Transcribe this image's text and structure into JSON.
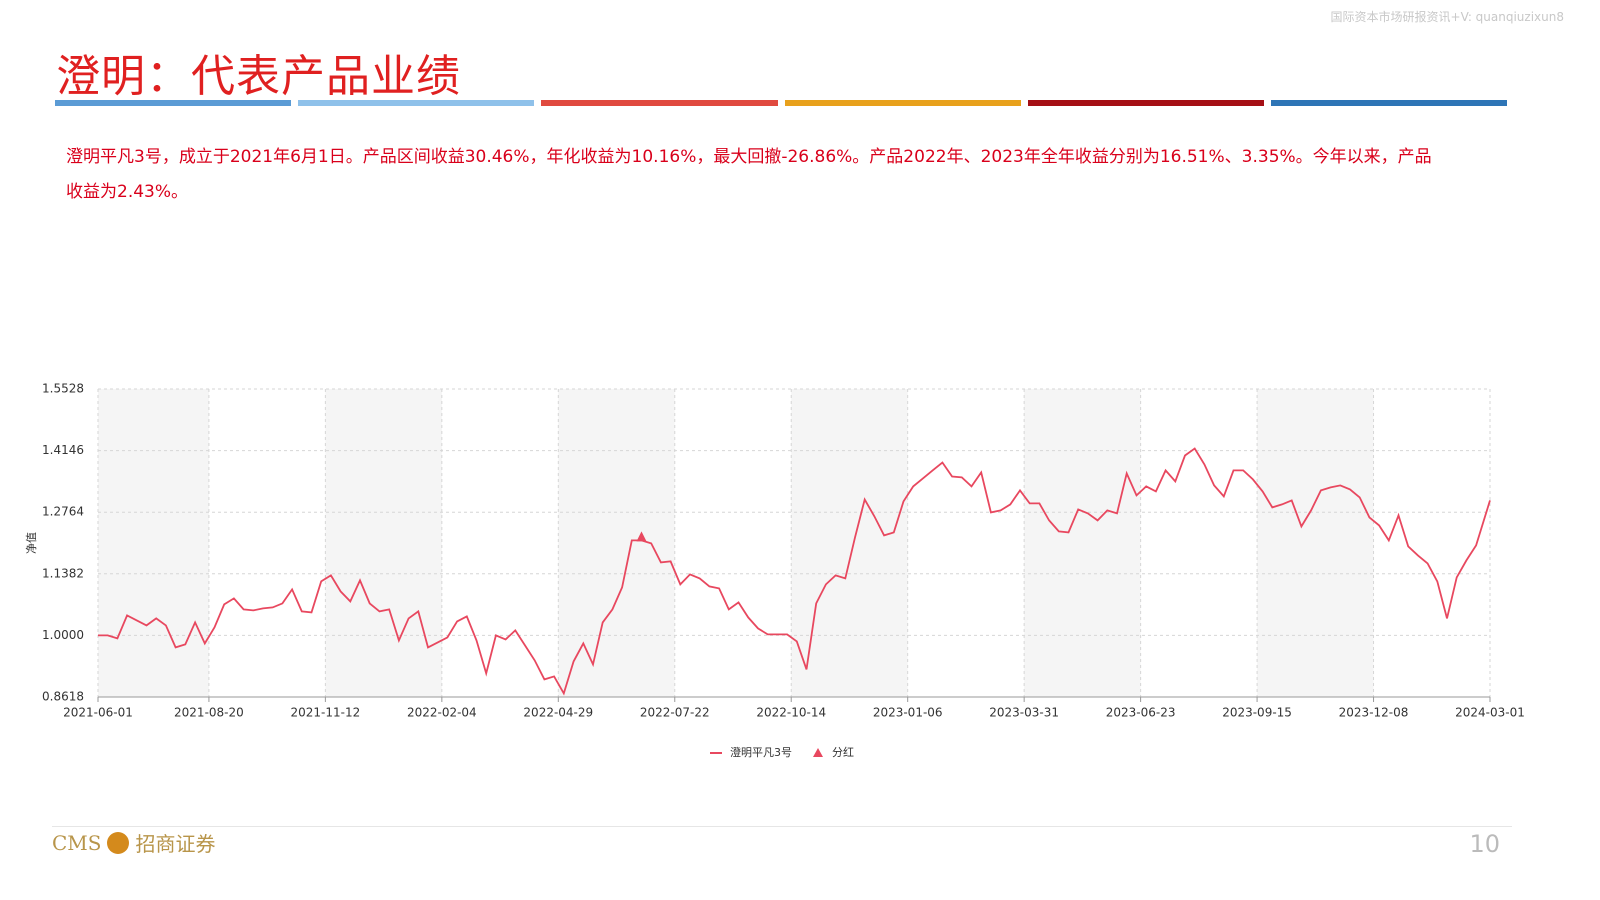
{
  "watermark": "国际资本市场研报资讯+V: quanqiuzixun8",
  "header": {
    "title": "澄明：代表产品业绩"
  },
  "paragraph": "澄明平凡3号，成立于2021年6月1日。产品区间收益30.46%，年化收益为10.16%，最大回撤-26.86%。产品2022年、2023年全年收益分别为16.51%、3.35%。今年以来，产品收益为2.43%。",
  "footer": {
    "logo_en": "CMS",
    "logo_cn": "招商证券",
    "page_number": "10"
  },
  "chart_data": {
    "type": "line",
    "ylabel": "净值",
    "grid": true,
    "xlim": [
      "2021-06-01",
      "2024-03-01"
    ],
    "xticks": [
      "2021-06-01",
      "2021-08-20",
      "2021-11-12",
      "2022-02-04",
      "2022-04-29",
      "2022-07-22",
      "2022-10-14",
      "2023-01-06",
      "2023-03-31",
      "2023-06-23",
      "2023-09-15",
      "2023-12-08",
      "2024-03-01"
    ],
    "ylim": [
      0.8618,
      1.5528
    ],
    "yticks": [
      0.8618,
      {
        "value": 1,
        "label": "1.0000"
      },
      1.1382,
      1.2764,
      1.4146,
      1.5528
    ],
    "series": [
      {
        "name": "澄明平凡3号",
        "color": "#e8485f",
        "x": [
          "2021-06-01",
          "2021-06-08",
          "2021-06-15",
          "2021-06-22",
          "2021-06-29",
          "2021-07-06",
          "2021-07-13",
          "2021-07-20",
          "2021-07-27",
          "2021-08-03",
          "2021-08-10",
          "2021-08-17",
          "2021-08-24",
          "2021-08-31",
          "2021-09-07",
          "2021-09-14",
          "2021-09-21",
          "2021-09-28",
          "2021-10-05",
          "2021-10-12",
          "2021-10-19",
          "2021-10-26",
          "2021-11-02",
          "2021-11-09",
          "2021-11-16",
          "2021-11-23",
          "2021-11-30",
          "2021-12-07",
          "2021-12-14",
          "2021-12-21",
          "2021-12-28",
          "2022-01-04",
          "2022-01-11",
          "2022-01-18",
          "2022-01-25",
          "2022-02-01",
          "2022-02-08",
          "2022-02-15",
          "2022-02-22",
          "2022-03-01",
          "2022-03-08",
          "2022-03-15",
          "2022-03-22",
          "2022-03-29",
          "2022-04-05",
          "2022-04-12",
          "2022-04-19",
          "2022-04-26",
          "2022-05-03",
          "2022-05-10",
          "2022-05-17",
          "2022-05-24",
          "2022-05-31",
          "2022-06-07",
          "2022-06-14",
          "2022-06-21",
          "2022-06-28",
          "2022-07-05",
          "2022-07-12",
          "2022-07-19",
          "2022-07-26",
          "2022-08-02",
          "2022-08-09",
          "2022-08-16",
          "2022-08-23",
          "2022-08-30",
          "2022-09-06",
          "2022-09-13",
          "2022-09-20",
          "2022-09-27",
          "2022-10-04",
          "2022-10-11",
          "2022-10-18",
          "2022-10-25",
          "2022-11-01",
          "2022-11-08",
          "2022-11-15",
          "2022-11-22",
          "2022-11-29",
          "2022-12-06",
          "2022-12-13",
          "2022-12-20",
          "2022-12-27",
          "2023-01-03",
          "2023-01-10",
          "2023-01-17",
          "2023-01-24",
          "2023-01-31",
          "2023-02-07",
          "2023-02-14",
          "2023-02-21",
          "2023-02-28",
          "2023-03-07",
          "2023-03-14",
          "2023-03-21",
          "2023-03-28",
          "2023-04-04",
          "2023-04-11",
          "2023-04-18",
          "2023-04-25",
          "2023-05-02",
          "2023-05-09",
          "2023-05-16",
          "2023-05-23",
          "2023-05-30",
          "2023-06-06",
          "2023-06-13",
          "2023-06-20",
          "2023-06-27",
          "2023-07-04",
          "2023-07-11",
          "2023-07-18",
          "2023-07-25",
          "2023-08-01",
          "2023-08-08",
          "2023-08-15",
          "2023-08-22",
          "2023-08-29",
          "2023-09-05",
          "2023-09-12",
          "2023-09-19",
          "2023-09-26",
          "2023-10-03",
          "2023-10-10",
          "2023-10-17",
          "2023-10-24",
          "2023-10-31",
          "2023-11-07",
          "2023-11-14",
          "2023-11-21",
          "2023-11-28",
          "2023-12-05",
          "2023-12-12",
          "2023-12-19",
          "2023-12-26",
          "2024-01-02",
          "2024-01-09",
          "2024-01-16",
          "2024-01-23",
          "2024-01-30",
          "2024-02-06",
          "2024-02-13",
          "2024-02-20",
          "2024-03-01"
        ],
        "values": [
          1.0,
          1.0,
          0.9933,
          1.0449,
          1.0336,
          1.0224,
          1.0381,
          1.0224,
          0.9731,
          0.9798,
          1.0292,
          0.9821,
          1.0179,
          1.0695,
          1.083,
          1.0583,
          1.0561,
          1.0606,
          1.0628,
          1.0718,
          1.1032,
          1.0538,
          1.0516,
          1.1211,
          1.1346,
          1.0987,
          1.0763,
          1.1234,
          1.0718,
          1.0538,
          1.0583,
          0.9888,
          1.0381,
          1.0538,
          0.9731,
          0.9843,
          0.9955,
          1.0314,
          1.0426,
          0.9888,
          0.9148,
          1.0,
          0.991,
          1.0112,
          0.9776,
          0.9439,
          0.9013,
          0.908,
          0.8699,
          0.9417,
          0.9821,
          0.935,
          1.0292,
          1.0583,
          1.1077,
          1.2131,
          1.2131,
          1.2064,
          1.1637,
          1.166,
          1.1144,
          1.1368,
          1.1279,
          1.1099,
          1.1054,
          1.0583,
          1.074,
          1.0404,
          1.0157,
          1.0022,
          1.0022,
          1.0022,
          0.9865,
          0.9237,
          1.0718,
          1.1144,
          1.1346,
          1.1279,
          1.2198,
          1.305,
          1.2669,
          1.2243,
          1.231,
          1.3006,
          1.3342,
          1.3522,
          1.3701,
          1.388,
          1.3566,
          1.3544,
          1.3342,
          1.3656,
          1.2759,
          1.2804,
          1.2938,
          1.3252,
          1.2961,
          1.2961,
          1.2579,
          1.2333,
          1.231,
          1.2826,
          1.2736,
          1.2579,
          1.2804,
          1.2736,
          1.3634,
          1.314,
          1.3342,
          1.323,
          1.3701,
          1.3454,
          1.4037,
          1.4194,
          1.3836,
          1.3365,
          1.3118,
          1.3701,
          1.3701,
          1.3499,
          1.323,
          1.2871,
          1.2938,
          1.3028,
          1.2445,
          1.2804,
          1.3252,
          1.332,
          1.3365,
          1.3275,
          1.3095,
          1.2647,
          1.2467,
          1.2131,
          1.2692,
          1.1996,
          1.1794,
          1.1615,
          1.1211,
          1.0381,
          1.1301,
          1.1682,
          1.2019,
          1.3028
        ]
      },
      {
        "name": "分红",
        "color": "#e8485f",
        "marker": "triangle",
        "x": [
          "2022-06-28"
        ],
        "values": [
          1.2198
        ]
      }
    ]
  }
}
